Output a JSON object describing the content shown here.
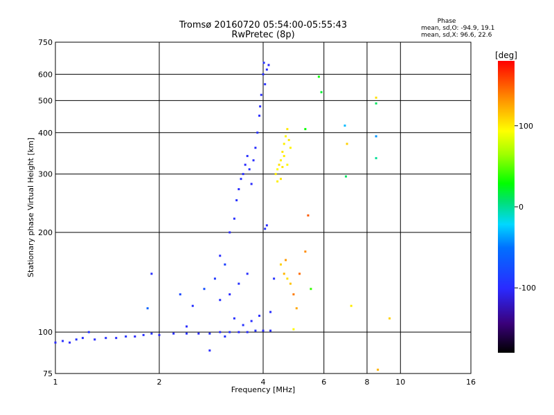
{
  "chart_data": {
    "type": "scatter",
    "title": "Tromsø 20160720 05:54:00-05:55:43",
    "subtitle": "RwPretec (8p)",
    "xlabel": "Frequency [MHz]",
    "ylabel": "Stationary phase Virtual Height [km]",
    "x_scale": "log",
    "y_scale": "log",
    "xlim": [
      1,
      16
    ],
    "ylim": [
      75,
      750
    ],
    "grid": true,
    "x_ticks": [
      1,
      2,
      4,
      6,
      8,
      10,
      16
    ],
    "x_tick_labels": [
      "1",
      "2",
      "4",
      "6",
      "8",
      "10",
      "16"
    ],
    "y_ticks": [
      75,
      100,
      200,
      300,
      400,
      500,
      600,
      750
    ],
    "y_tick_labels": [
      "75",
      "100",
      "200",
      "300",
      "400",
      "500",
      "600",
      "750"
    ],
    "stats": {
      "heading": "Phase",
      "line_o": "mean, sd,O: -94.9, 19.1",
      "line_x": "mean, sd,X:  96.6, 22.6"
    },
    "colorbar": {
      "unit_label": "[deg]",
      "range": [
        -180,
        180
      ],
      "ticks": [
        -100,
        0,
        100
      ],
      "tick_labels": [
        "-100",
        "0",
        "100"
      ]
    },
    "series": [
      {
        "mode": "O",
        "points": [
          [
            1.0,
            93,
            -100
          ],
          [
            1.05,
            94,
            -98
          ],
          [
            1.1,
            93,
            -102
          ],
          [
            1.15,
            95,
            -95
          ],
          [
            1.2,
            96,
            -97
          ],
          [
            1.3,
            95,
            -100
          ],
          [
            1.4,
            96,
            -96
          ],
          [
            1.5,
            96,
            -99
          ],
          [
            1.6,
            97,
            -94
          ],
          [
            1.7,
            97,
            -101
          ],
          [
            1.8,
            98,
            -97
          ],
          [
            1.9,
            99,
            -95
          ],
          [
            2.0,
            98,
            -103
          ],
          [
            2.2,
            99,
            -98
          ],
          [
            2.4,
            99,
            -96
          ],
          [
            2.6,
            99,
            -100
          ],
          [
            2.8,
            99,
            -97
          ],
          [
            3.0,
            100,
            -99
          ],
          [
            3.2,
            100,
            -95
          ],
          [
            3.4,
            100,
            -101
          ],
          [
            3.6,
            100,
            -98
          ],
          [
            3.8,
            101,
            -96
          ],
          [
            4.0,
            101,
            -100
          ],
          [
            4.2,
            101,
            -98
          ],
          [
            1.25,
            100,
            -95
          ],
          [
            1.9,
            150,
            -98
          ],
          [
            1.85,
            118,
            -60
          ],
          [
            2.3,
            130,
            -80
          ],
          [
            2.5,
            120,
            -96
          ],
          [
            2.7,
            135,
            -75
          ],
          [
            2.9,
            145,
            -90
          ],
          [
            3.0,
            170,
            -99
          ],
          [
            3.1,
            160,
            -85
          ],
          [
            3.2,
            200,
            -100
          ],
          [
            3.3,
            220,
            -97
          ],
          [
            3.35,
            250,
            -96
          ],
          [
            3.4,
            270,
            -99
          ],
          [
            3.45,
            290,
            -95
          ],
          [
            3.5,
            300,
            -98
          ],
          [
            3.55,
            320,
            -100
          ],
          [
            3.6,
            340,
            -97
          ],
          [
            3.65,
            310,
            -96
          ],
          [
            3.7,
            280,
            -101
          ],
          [
            3.75,
            330,
            -99
          ],
          [
            3.8,
            360,
            -98
          ],
          [
            3.85,
            400,
            -96
          ],
          [
            3.9,
            450,
            -100
          ],
          [
            3.95,
            520,
            -99
          ],
          [
            4.0,
            600,
            -97
          ],
          [
            4.02,
            650,
            -95
          ],
          [
            4.1,
            620,
            -98
          ],
          [
            4.15,
            640,
            -102
          ],
          [
            4.05,
            560,
            -96
          ],
          [
            3.92,
            480,
            -99
          ],
          [
            3.3,
            110,
            -97
          ],
          [
            3.5,
            105,
            -96
          ],
          [
            3.7,
            108,
            -99
          ],
          [
            3.9,
            112,
            -100
          ],
          [
            4.05,
            205,
            -95
          ],
          [
            4.1,
            210,
            -99
          ],
          [
            3.6,
            150,
            -98
          ],
          [
            3.4,
            140,
            -96
          ],
          [
            3.2,
            130,
            -101
          ],
          [
            3.0,
            125,
            -97
          ],
          [
            4.2,
            115,
            -98
          ],
          [
            4.3,
            145,
            -96
          ],
          [
            2.8,
            88,
            -99
          ],
          [
            3.1,
            97,
            -95
          ],
          [
            2.4,
            104,
            -100
          ]
        ]
      },
      {
        "mode": "X",
        "points": [
          [
            4.35,
            300,
            100
          ],
          [
            4.4,
            310,
            95
          ],
          [
            4.45,
            320,
            105
          ],
          [
            4.5,
            330,
            98
          ],
          [
            4.55,
            350,
            102
          ],
          [
            4.6,
            370,
            99
          ],
          [
            4.65,
            390,
            96
          ],
          [
            4.7,
            410,
            101
          ],
          [
            4.75,
            380,
            100
          ],
          [
            4.8,
            360,
            97
          ],
          [
            4.5,
            290,
            103
          ],
          [
            4.4,
            285,
            99
          ],
          [
            4.6,
            340,
            100
          ],
          [
            4.7,
            320,
            96
          ],
          [
            4.55,
            315,
            102
          ],
          [
            4.5,
            160,
            110
          ],
          [
            4.6,
            150,
            120
          ],
          [
            4.7,
            145,
            105
          ],
          [
            4.8,
            140,
            115
          ],
          [
            4.65,
            165,
            130
          ],
          [
            4.9,
            130,
            140
          ],
          [
            5.0,
            118,
            125
          ],
          [
            5.1,
            150,
            145
          ],
          [
            5.3,
            175,
            135
          ],
          [
            5.4,
            225,
            150
          ],
          [
            5.5,
            135,
            40
          ],
          [
            5.3,
            410,
            30
          ],
          [
            5.8,
            590,
            30
          ],
          [
            5.9,
            530,
            20
          ],
          [
            6.9,
            420,
            -30
          ],
          [
            6.95,
            295,
            10
          ],
          [
            7.0,
            370,
            110
          ],
          [
            7.2,
            120,
            100
          ],
          [
            8.5,
            510,
            105
          ],
          [
            8.5,
            490,
            10
          ],
          [
            8.5,
            390,
            -40
          ],
          [
            8.5,
            335,
            0
          ],
          [
            8.6,
            77,
            120
          ],
          [
            9.3,
            110,
            110
          ],
          [
            4.9,
            102,
            95
          ]
        ]
      }
    ]
  }
}
